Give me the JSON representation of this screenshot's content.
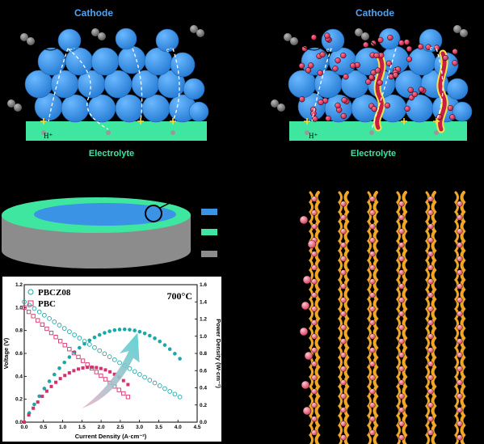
{
  "panel_a": {
    "cathode_label": "Cathode",
    "electrolyte_label": "Electrolyte",
    "electron_label": "e⁻",
    "proton_label": "H⁺"
  },
  "panel_b": {
    "cathode_label": "Cathode",
    "electrolyte_label": "Electrolyte",
    "electron_label": "e⁻",
    "proton_label": "H⁺"
  },
  "colors": {
    "cathode_blue": "#3b93e6",
    "electrolyte_green": "#3fe6a0",
    "label_blue": "#4fa3f0",
    "label_green": "#3fe6a0",
    "nanoparticle_red": "#e0305a",
    "pbcz_teal": "#1aa8a8",
    "pbc_pink": "#d6306e",
    "ribbon_orange": "#f2a623",
    "disk_gray": "#8c8c8c"
  },
  "chart_data": {
    "type": "line",
    "annotation": "700°C",
    "xlabel": "Current Density (A·cm⁻²)",
    "ylabel": "Voltage (V)",
    "y2label": "Power Density (W·cm⁻²)",
    "xlim": [
      0,
      4.5
    ],
    "ylim": [
      0,
      1.2
    ],
    "y2lim": [
      0,
      1.6
    ],
    "xticks": [
      "0.0",
      "0.5",
      "1.0",
      "1.5",
      "2.0",
      "2.5",
      "3.0",
      "3.5",
      "4.0",
      "4.5"
    ],
    "yticks": [
      "0.0",
      "0.2",
      "0.4",
      "0.6",
      "0.8",
      "1.0",
      "1.2"
    ],
    "y2ticks": [
      "0.0",
      "0.2",
      "0.4",
      "0.6",
      "0.8",
      "1.0",
      "1.2",
      "1.4",
      "1.6"
    ],
    "series": [
      {
        "name": "PBCZ08",
        "color": "#1aa8a8",
        "voc": 1.05,
        "jmax": 4.05,
        "vend": 0.22,
        "ppd": 1.08
      },
      {
        "name": "PBC",
        "color": "#d6306e",
        "voc": 1.0,
        "jmax": 2.7,
        "vend": 0.22,
        "ppd": 0.64
      }
    ]
  }
}
